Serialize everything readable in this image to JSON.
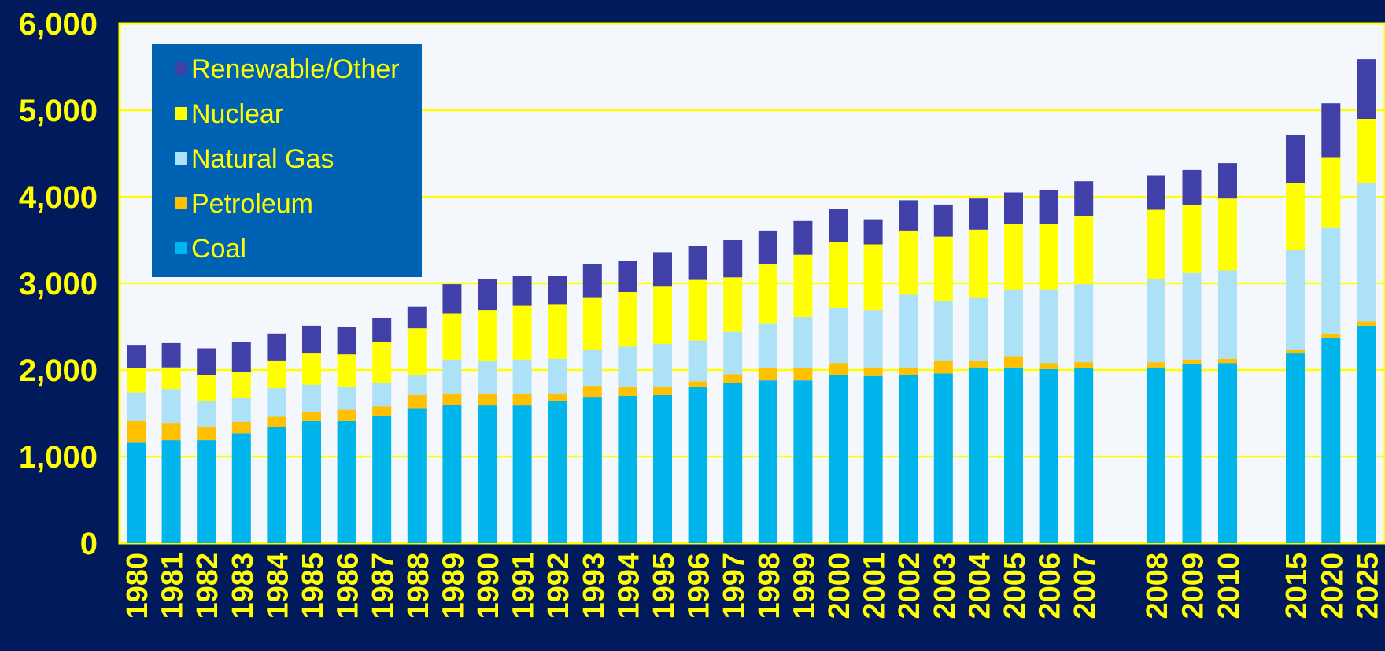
{
  "chart_data": {
    "type": "bar",
    "stacked": true,
    "categories": [
      "1980",
      "1981",
      "1982",
      "1983",
      "1984",
      "1985",
      "1986",
      "1987",
      "1988",
      "1989",
      "1990",
      "1991",
      "1992",
      "1993",
      "1994",
      "1995",
      "1996",
      "1997",
      "1998",
      "1999",
      "2000",
      "2001",
      "2002",
      "2003",
      "2004",
      "2005",
      "2006",
      "2007",
      "2008",
      "2009",
      "2010",
      "2015",
      "2020",
      "2025"
    ],
    "series": [
      {
        "name": "Coal",
        "color": "#00b4ec",
        "values": [
          1160,
          1190,
          1190,
          1270,
          1340,
          1410,
          1410,
          1470,
          1560,
          1600,
          1590,
          1590,
          1640,
          1690,
          1700,
          1710,
          1800,
          1850,
          1880,
          1880,
          1940,
          1930,
          1940,
          1960,
          2030,
          2030,
          2010,
          2020,
          2030,
          2070,
          2080,
          2190,
          2370,
          2510
        ]
      },
      {
        "name": "Petroleum",
        "color": "#ffc000",
        "values": [
          250,
          200,
          150,
          130,
          120,
          100,
          130,
          110,
          150,
          130,
          140,
          130,
          90,
          130,
          110,
          90,
          70,
          100,
          140,
          140,
          140,
          100,
          90,
          140,
          70,
          130,
          70,
          70,
          60,
          50,
          50,
          40,
          50,
          50
        ]
      },
      {
        "name": "Natural Gas",
        "color": "#ade1f7",
        "values": [
          330,
          390,
          300,
          280,
          330,
          320,
          270,
          270,
          230,
          390,
          380,
          400,
          400,
          410,
          460,
          500,
          470,
          490,
          520,
          590,
          640,
          660,
          840,
          700,
          740,
          770,
          850,
          900,
          960,
          1000,
          1020,
          1160,
          1220,
          1600
        ]
      },
      {
        "name": "Nuclear",
        "color": "#ffff00",
        "values": [
          280,
          250,
          300,
          300,
          320,
          360,
          370,
          470,
          540,
          530,
          580,
          620,
          630,
          610,
          630,
          670,
          700,
          630,
          680,
          720,
          760,
          760,
          740,
          740,
          780,
          760,
          760,
          790,
          800,
          780,
          830,
          770,
          810,
          740
        ]
      },
      {
        "name": "Renewable/Other",
        "color": "#4040a8",
        "values": [
          270,
          280,
          310,
          340,
          310,
          320,
          320,
          280,
          250,
          340,
          360,
          350,
          330,
          380,
          360,
          390,
          390,
          430,
          390,
          390,
          380,
          290,
          350,
          370,
          360,
          360,
          390,
          400,
          400,
          410,
          410,
          550,
          630,
          690
        ]
      }
    ],
    "ylim": [
      0,
      6000
    ],
    "yticks": [
      "0",
      "1,000",
      "2,000",
      "3,000",
      "4,000",
      "5,000",
      "6,000"
    ],
    "grid": true,
    "legend_position": "top-left",
    "title": "",
    "xlabel": "",
    "ylabel": "",
    "colors": {
      "background": "#001a5c",
      "plot_background": "#f4f8fc",
      "gridline": "#ffff00",
      "tick_label": "#ffff00",
      "legend_background": "#0062b2",
      "legend_text": "#ffff00"
    }
  }
}
